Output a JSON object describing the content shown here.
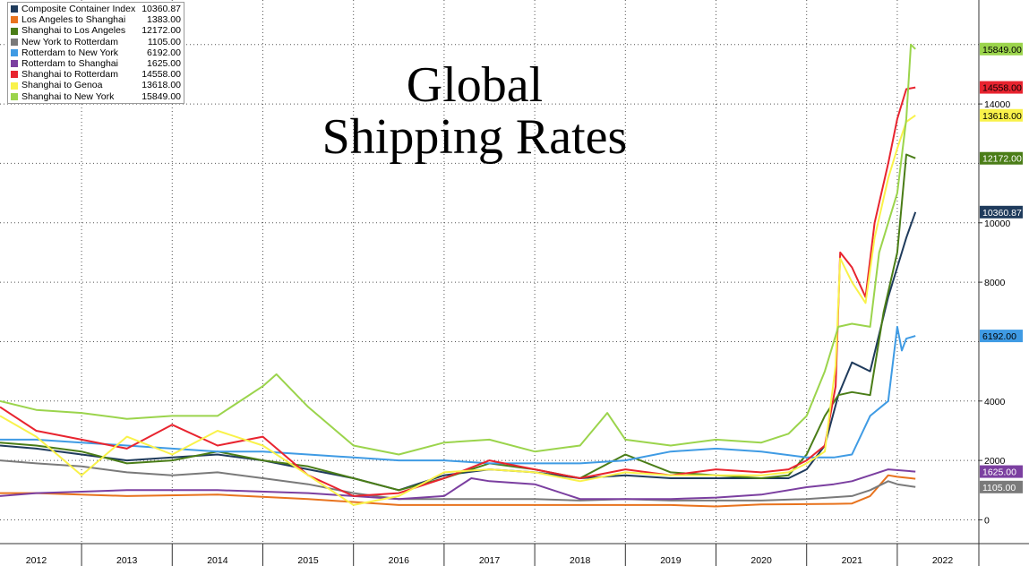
{
  "chart_data": {
    "type": "line",
    "title_lines": [
      "Global",
      "Shipping Rates"
    ],
    "y_ticks": [
      "0",
      "2000",
      "4000",
      "8000",
      "10000",
      "14000"
    ],
    "ylim": [
      -800,
      17500
    ],
    "x_ticks": [
      "2012",
      "2013",
      "2014",
      "2015",
      "2016",
      "2017",
      "2018",
      "2019",
      "2020",
      "2021",
      "2022"
    ],
    "x_tick_years": [
      2012,
      2013,
      2014,
      2015,
      2016,
      2017,
      2018,
      2019,
      2020,
      2021,
      2022
    ],
    "xlim": [
      2011.6,
      2022.4
    ],
    "grid": true,
    "legend_position": "top-left",
    "series": [
      {
        "name": "Composite Container Index",
        "value": "10360.87",
        "color": "#1f3b5c",
        "x": [
          2011.6,
          2012.0,
          2012.5,
          2013.0,
          2013.5,
          2014.0,
          2014.5,
          2015.0,
          2015.5,
          2016.0,
          2016.5,
          2017.0,
          2017.5,
          2018.0,
          2018.5,
          2019.0,
          2019.5,
          2020.0,
          2020.3,
          2020.5,
          2020.7,
          2020.85,
          2021.0,
          2021.2,
          2021.4,
          2021.5,
          2021.6,
          2021.7
        ],
        "y": [
          2500,
          2400,
          2200,
          2000,
          2100,
          2200,
          2000,
          1700,
          1400,
          1000,
          1500,
          1700,
          1600,
          1400,
          1500,
          1400,
          1400,
          1400,
          1400,
          1700,
          2500,
          4200,
          5300,
          5000,
          7500,
          8500,
          9500,
          10360.87
        ]
      },
      {
        "name": "Los Angeles to Shanghai",
        "value": "1383.00",
        "color": "#e8731e",
        "x": [
          2011.6,
          2012.0,
          2013.0,
          2014.0,
          2015.0,
          2016.0,
          2017.0,
          2018.0,
          2019.0,
          2019.5,
          2020.0,
          2020.5,
          2020.8,
          2021.0,
          2021.2,
          2021.4,
          2021.5,
          2021.7
        ],
        "y": [
          900,
          900,
          800,
          850,
          700,
          500,
          500,
          500,
          500,
          450,
          520,
          530,
          540,
          550,
          800,
          1500,
          1450,
          1383
        ]
      },
      {
        "name": "Shanghai to Los Angeles",
        "value": "12172.00",
        "color": "#4a7d17",
        "x": [
          2011.6,
          2012.0,
          2012.5,
          2013.0,
          2013.5,
          2014.0,
          2014.5,
          2015.0,
          2015.5,
          2016.0,
          2016.5,
          2017.0,
          2017.5,
          2018.0,
          2018.5,
          2019.0,
          2019.5,
          2020.0,
          2020.3,
          2020.5,
          2020.7,
          2020.85,
          2021.0,
          2021.2,
          2021.35,
          2021.5,
          2021.6,
          2021.7
        ],
        "y": [
          2600,
          2500,
          2300,
          1900,
          2000,
          2300,
          2000,
          1800,
          1400,
          1000,
          1400,
          1900,
          1700,
          1400,
          2200,
          1600,
          1500,
          1400,
          1500,
          2200,
          3500,
          4200,
          4300,
          4200,
          7000,
          9000,
          12300,
          12172
        ]
      },
      {
        "name": "New York to Rotterdam",
        "value": "1105.00",
        "color": "#7a7a7a",
        "x": [
          2011.6,
          2012.0,
          2012.5,
          2013.0,
          2013.5,
          2014.0,
          2014.5,
          2015.0,
          2015.5,
          2016.0,
          2016.5,
          2017.0,
          2017.5,
          2018.0,
          2018.5,
          2019.0,
          2019.5,
          2020.0,
          2020.5,
          2021.0,
          2021.2,
          2021.4,
          2021.5,
          2021.7
        ],
        "y": [
          2000,
          1900,
          1800,
          1600,
          1500,
          1600,
          1400,
          1200,
          900,
          700,
          700,
          700,
          700,
          650,
          700,
          650,
          650,
          650,
          700,
          800,
          1000,
          1300,
          1200,
          1105
        ]
      },
      {
        "name": "Rotterdam to New York",
        "value": "6192.00",
        "color": "#3f9be4",
        "x": [
          2011.6,
          2012.0,
          2012.5,
          2013.0,
          2013.5,
          2014.0,
          2014.5,
          2015.0,
          2015.5,
          2016.0,
          2016.5,
          2017.0,
          2017.5,
          2018.0,
          2018.5,
          2019.0,
          2019.5,
          2020.0,
          2020.5,
          2020.8,
          2021.0,
          2021.2,
          2021.4,
          2021.5,
          2021.55,
          2021.6,
          2021.7
        ],
        "y": [
          2700,
          2700,
          2600,
          2500,
          2400,
          2300,
          2300,
          2200,
          2100,
          2000,
          2000,
          1900,
          1900,
          1900,
          2000,
          2300,
          2400,
          2300,
          2100,
          2100,
          2200,
          3500,
          4000,
          6500,
          5700,
          6100,
          6192
        ]
      },
      {
        "name": "Rotterdam to Shanghai",
        "value": "1625.00",
        "color": "#7b3fa0",
        "x": [
          2011.6,
          2012.0,
          2012.5,
          2013.0,
          2014.0,
          2015.0,
          2016.0,
          2016.5,
          2016.8,
          2017.0,
          2017.5,
          2018.0,
          2019.0,
          2019.5,
          2020.0,
          2020.5,
          2020.8,
          2021.0,
          2021.2,
          2021.4,
          2021.7
        ],
        "y": [
          800,
          900,
          950,
          1000,
          1000,
          900,
          700,
          800,
          1400,
          1300,
          1200,
          700,
          700,
          750,
          850,
          1100,
          1200,
          1300,
          1500,
          1700,
          1625
        ]
      },
      {
        "name": "Shanghai to Rotterdam",
        "value": "14558.00",
        "color": "#e8242f",
        "x": [
          2011.6,
          2012.0,
          2012.5,
          2013.0,
          2013.5,
          2014.0,
          2014.5,
          2015.0,
          2015.5,
          2016.0,
          2016.5,
          2017.0,
          2017.5,
          2018.0,
          2018.5,
          2019.0,
          2019.5,
          2020.0,
          2020.3,
          2020.5,
          2020.7,
          2020.82,
          2020.87,
          2021.0,
          2021.15,
          2021.25,
          2021.4,
          2021.5,
          2021.6,
          2021.7
        ],
        "y": [
          3800,
          3000,
          2700,
          2400,
          3200,
          2500,
          2800,
          1500,
          800,
          900,
          1400,
          2000,
          1700,
          1400,
          1700,
          1500,
          1700,
          1600,
          1700,
          2000,
          2500,
          4500,
          9000,
          8500,
          7500,
          10000,
          12000,
          13500,
          14500,
          14558
        ]
      },
      {
        "name": "Shanghai to Genoa",
        "value": "13618.00",
        "color": "#f9f24a",
        "x": [
          2011.6,
          2012.0,
          2012.5,
          2013.0,
          2013.5,
          2014.0,
          2014.5,
          2015.0,
          2015.5,
          2016.0,
          2016.5,
          2017.0,
          2017.5,
          2018.0,
          2018.5,
          2019.0,
          2019.5,
          2020.0,
          2020.3,
          2020.5,
          2020.7,
          2020.82,
          2020.87,
          2021.0,
          2021.15,
          2021.25,
          2021.4,
          2021.5,
          2021.6,
          2021.7
        ],
        "y": [
          3500,
          2800,
          1500,
          2800,
          2200,
          3000,
          2500,
          1500,
          500,
          800,
          1600,
          1700,
          1600,
          1300,
          1600,
          1500,
          1500,
          1500,
          1600,
          1900,
          2300,
          5200,
          8800,
          8000,
          7300,
          9500,
          11500,
          12500,
          13400,
          13618
        ]
      },
      {
        "name": "Shanghai to New York",
        "value": "15849.00",
        "color": "#9bd44c",
        "x": [
          2011.6,
          2012.0,
          2012.5,
          2013.0,
          2013.5,
          2014.0,
          2014.5,
          2014.65,
          2015.0,
          2015.5,
          2016.0,
          2016.5,
          2017.0,
          2017.5,
          2018.0,
          2018.3,
          2018.5,
          2019.0,
          2019.5,
          2020.0,
          2020.3,
          2020.5,
          2020.7,
          2020.85,
          2021.0,
          2021.2,
          2021.3,
          2021.5,
          2021.6,
          2021.65,
          2021.7
        ],
        "y": [
          4000,
          3700,
          3600,
          3400,
          3500,
          3500,
          4500,
          4900,
          3800,
          2500,
          2200,
          2600,
          2700,
          2300,
          2500,
          3600,
          2700,
          2500,
          2700,
          2600,
          2900,
          3500,
          5000,
          6500,
          6600,
          6500,
          9000,
          11000,
          13500,
          16000,
          15849
        ]
      }
    ]
  }
}
